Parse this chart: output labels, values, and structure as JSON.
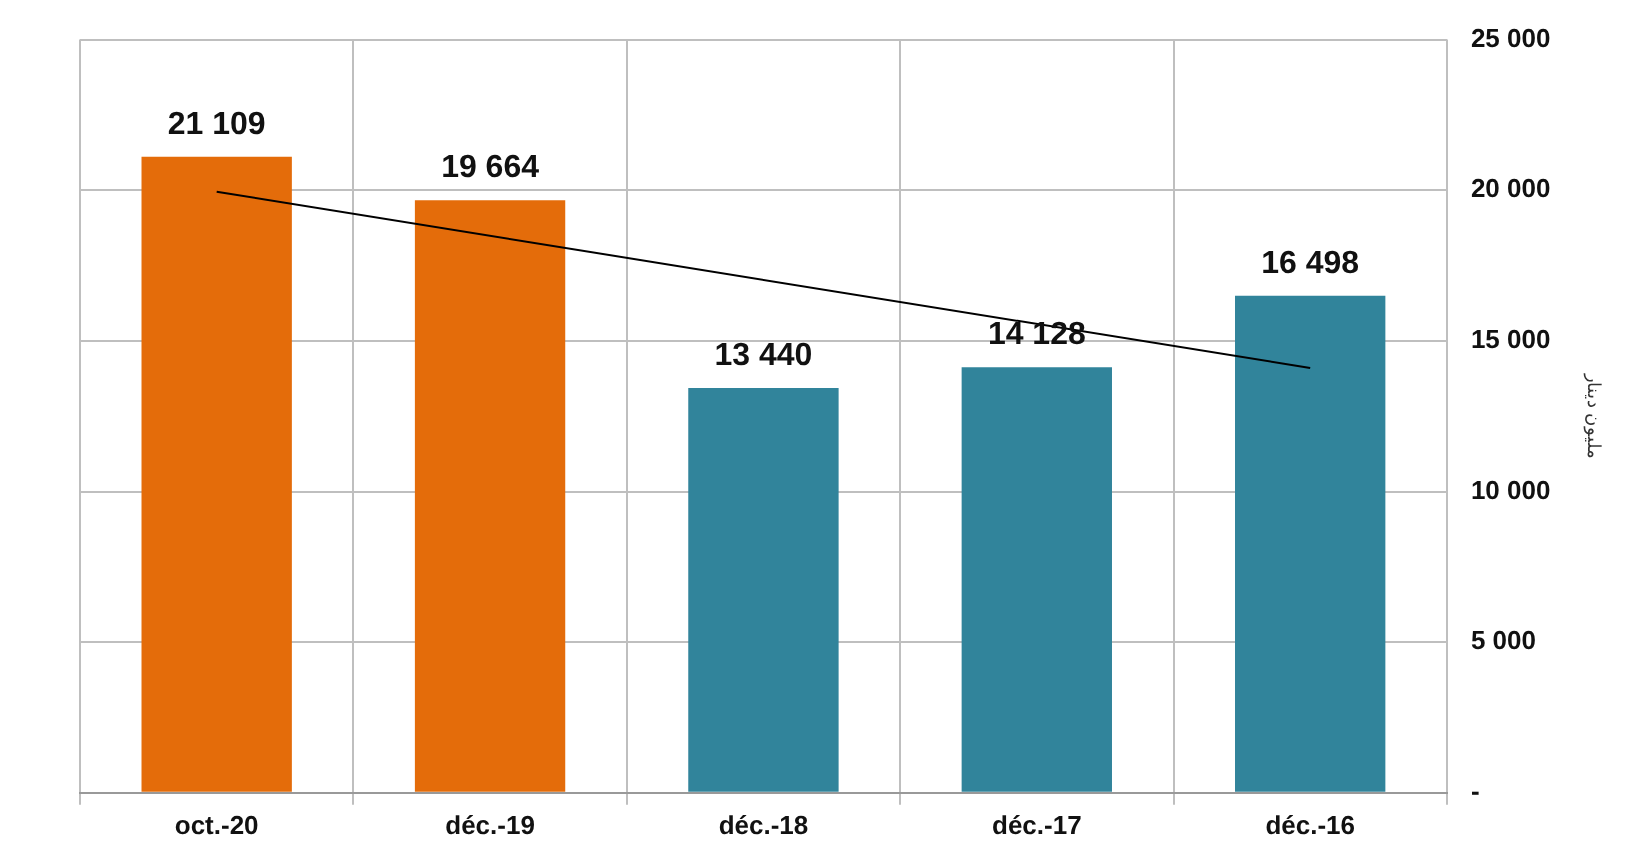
{
  "chart_data": {
    "type": "bar",
    "ylabel": "مليون دينار",
    "categories": [
      "oct.-20",
      "déc.-19",
      "déc.-18",
      "déc.-17",
      "déc.-16"
    ],
    "series": [
      {
        "colors": [
          "#e46c0a",
          "#e46c0a",
          "#31849b",
          "#31849b",
          "#31849b"
        ],
        "values": [
          21109,
          19664,
          13440,
          14128,
          16498
        ],
        "value_labels": [
          "21 109",
          "19 664",
          "13 440",
          "14 128",
          "16 498"
        ]
      },
      {
        "type": "line",
        "color": "#000000",
        "x": [
          "oct.-20",
          "déc.-16"
        ],
        "values": [
          19950,
          14100
        ]
      }
    ],
    "ylim": [
      0,
      25000
    ],
    "yticks": [
      {
        "value": 0,
        "label": "-"
      },
      {
        "value": 5000,
        "label": "5 000"
      },
      {
        "value": 10000,
        "label": "10 000"
      },
      {
        "value": 15000,
        "label": "15 000"
      },
      {
        "value": 20000,
        "label": "20 000"
      },
      {
        "value": 25000,
        "label": "25 000"
      }
    ],
    "grid": true,
    "marker": "none",
    "legend": false
  }
}
